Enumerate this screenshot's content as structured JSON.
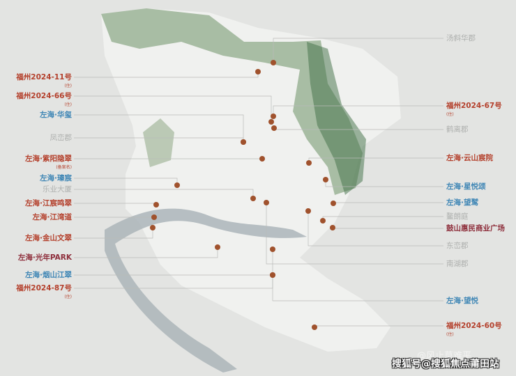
{
  "colors": {
    "developer": "#b4402c",
    "zuohai_blue": "#3f86b5",
    "competitor": "#aeb0ae",
    "commercial": "#8e2f3c",
    "marker": "#a0522d",
    "mountain": "#5f8a5a",
    "river": "#9aa7ad"
  },
  "left_labels": [
    {
      "text": "福州2024-11号",
      "sub": "(住)",
      "color": "red"
    },
    {
      "text": "福州2024-66号",
      "sub": "(住)",
      "color": "red"
    },
    {
      "text": "左海·华玺",
      "color": "blue"
    },
    {
      "text": "凤峦郡",
      "color": "gray"
    },
    {
      "text": "左海·紫阳隐翠",
      "sub": "(备案名)",
      "color": "red"
    },
    {
      "text": "左海·瑧宸",
      "color": "blue"
    },
    {
      "text": "乐业大厦",
      "color": "gray"
    },
    {
      "text": "左海·江宸鸣翠",
      "color": "red"
    },
    {
      "text": "左海·江湾道",
      "color": "red"
    },
    {
      "text": "左海·金山文翠",
      "color": "red"
    },
    {
      "text": "左海·光年PARK",
      "color": "maroon"
    },
    {
      "text": "左海·烟山江翠",
      "color": "blue"
    },
    {
      "text": "福州2024-87号",
      "sub": "(住)",
      "color": "red"
    }
  ],
  "right_labels": [
    {
      "text": "汤斜华郡",
      "color": "gray"
    },
    {
      "text": "福州2024-67号",
      "sub": "(住)",
      "color": "red"
    },
    {
      "text": "鹤离郡",
      "color": "gray"
    },
    {
      "text": "左海·云山宸院",
      "color": "red"
    },
    {
      "text": "左海·星悦颂",
      "color": "blue"
    },
    {
      "text": "左海·望鹫",
      "color": "blue"
    },
    {
      "text": "鳌朗庭",
      "color": "gray"
    },
    {
      "text": "鼓山惠民商业广场",
      "color": "maroon"
    },
    {
      "text": "东峦郡",
      "color": "gray"
    },
    {
      "text": "南湖郡",
      "color": "gray"
    },
    {
      "text": "左海·望悦",
      "color": "blue"
    },
    {
      "text": "福州2024-60号",
      "sub": "(住)",
      "color": "red"
    }
  ],
  "watermark": {
    "faint": "@风止草难平",
    "main": "搜狐号@搜狐焦点莆田站"
  }
}
